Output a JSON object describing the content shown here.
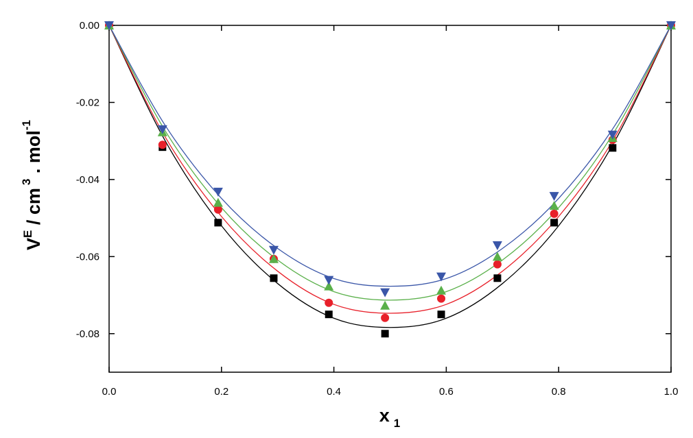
{
  "chart_data": {
    "type": "scatter",
    "x_label": [
      "x",
      "1"
    ],
    "y_label": [
      "V",
      "E",
      " / cm",
      "3",
      " . mol",
      "-1"
    ],
    "x": [
      0,
      0.095,
      0.194,
      0.293,
      0.391,
      0.491,
      0.591,
      0.691,
      0.792,
      0.896,
      1.0
    ],
    "fit_x": [
      0,
      0.1,
      0.2,
      0.3,
      0.4,
      0.5,
      0.6,
      0.7,
      0.8,
      0.9,
      1.0
    ],
    "series": [
      {
        "color": "#000000",
        "marker": "square",
        "values": [
          0,
          -0.0316,
          -0.0512,
          -0.0656,
          -0.075,
          -0.08,
          -0.075,
          -0.0656,
          -0.0512,
          -0.0318,
          0
        ],
        "fit": [
          0,
          -0.03,
          -0.052,
          -0.067,
          -0.076,
          -0.0784,
          -0.076,
          -0.067,
          -0.052,
          -0.03,
          0
        ]
      },
      {
        "color": "#e8202a",
        "marker": "circle",
        "values": [
          0,
          -0.031,
          -0.0478,
          -0.0606,
          -0.072,
          -0.0759,
          -0.0709,
          -0.062,
          -0.0489,
          -0.0297,
          0
        ],
        "fit": [
          0,
          -0.029,
          -0.0496,
          -0.0638,
          -0.0724,
          -0.0747,
          -0.0724,
          -0.0638,
          -0.0496,
          -0.029,
          0
        ]
      },
      {
        "color": "#5ab04a",
        "marker": "triangle-up",
        "values": [
          0,
          -0.0277,
          -0.046,
          -0.0606,
          -0.0677,
          -0.0727,
          -0.0688,
          -0.06,
          -0.0468,
          -0.0292,
          0
        ],
        "fit": [
          0,
          -0.0274,
          -0.0473,
          -0.0609,
          -0.0691,
          -0.0713,
          -0.0691,
          -0.0609,
          -0.0473,
          -0.0274,
          0
        ]
      },
      {
        "color": "#3a56a8",
        "marker": "triangle-down",
        "values": [
          0,
          -0.027,
          -0.0432,
          -0.0583,
          -0.0661,
          -0.0693,
          -0.0652,
          -0.0571,
          -0.0443,
          -0.0284,
          0
        ],
        "fit": [
          0,
          -0.026,
          -0.0449,
          -0.0579,
          -0.0657,
          -0.0677,
          -0.0657,
          -0.0579,
          -0.0449,
          -0.026,
          0
        ]
      }
    ],
    "xlim": [
      0,
      1.0
    ],
    "xticks": [
      {
        "value": 0,
        "label": "0.0"
      },
      0.2,
      0.4,
      0.6,
      0.8,
      {
        "value": 1.0,
        "label": "1.0"
      }
    ],
    "ylim": [
      -0.09,
      0
    ],
    "yticks": [
      {
        "value": 0,
        "label": "0.00"
      },
      -0.02,
      -0.04,
      -0.06,
      -0.08
    ]
  }
}
